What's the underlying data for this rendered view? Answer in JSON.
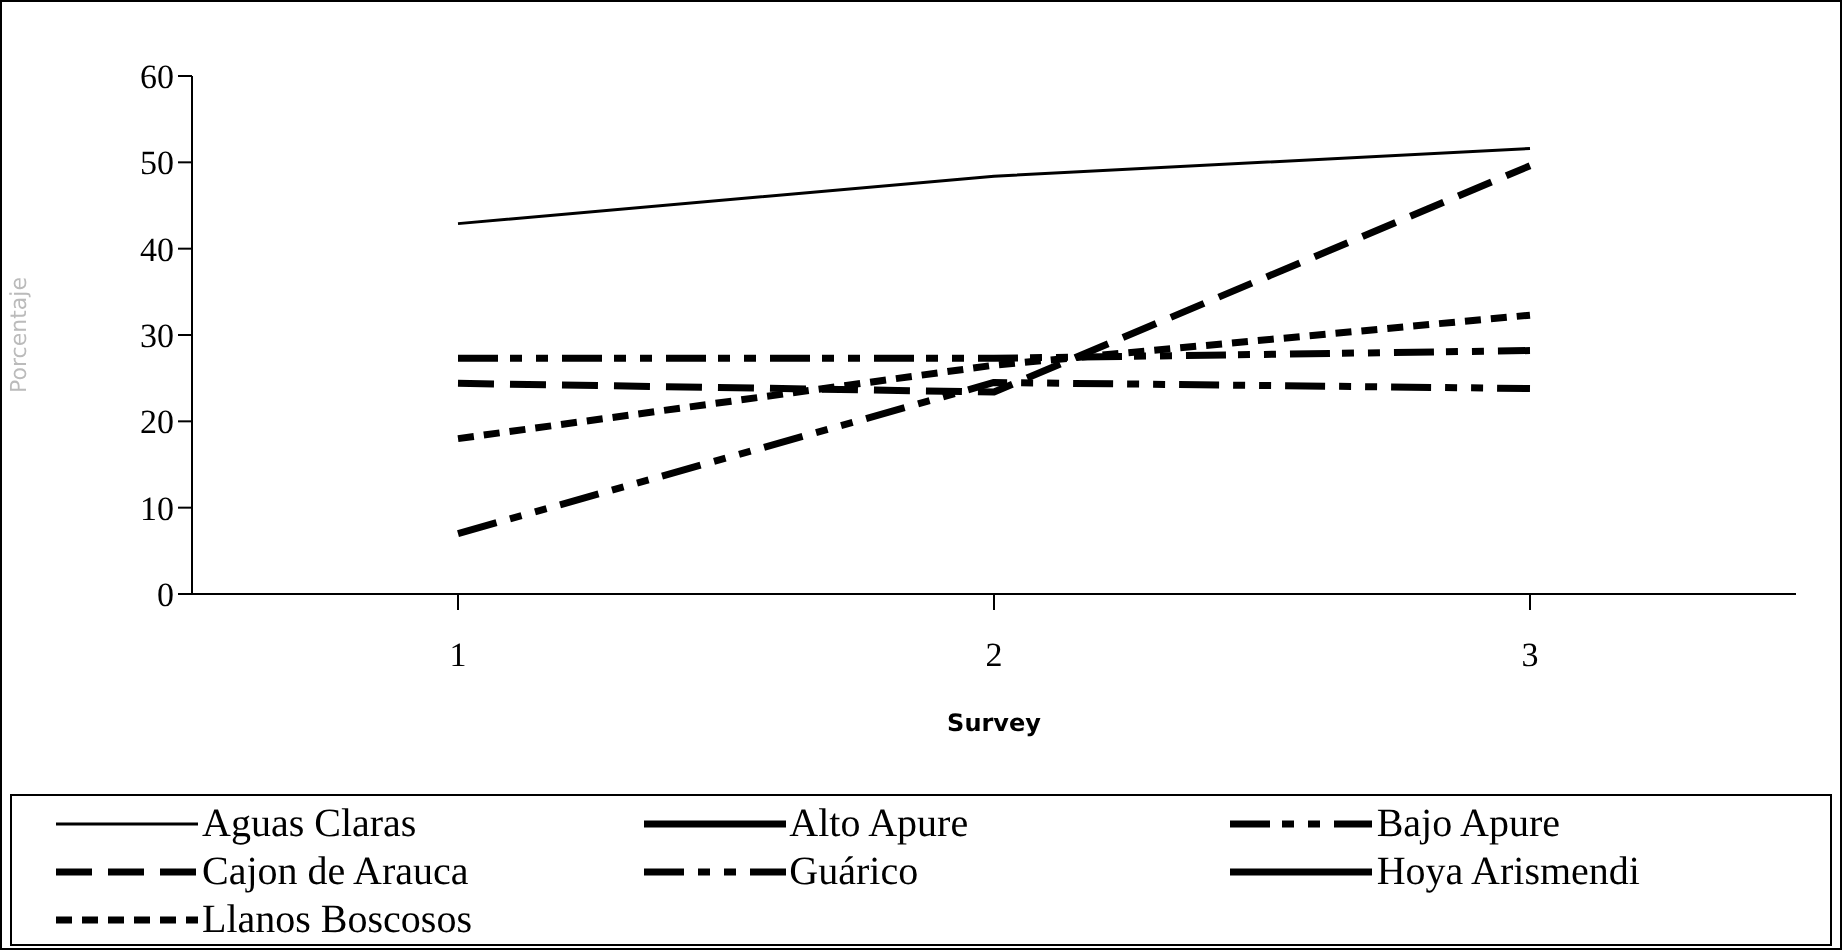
{
  "chart_data": {
    "type": "line",
    "xlabel": "Survey",
    "ylabel": "Porcentaje",
    "categories": [
      "1",
      "2",
      "3"
    ],
    "ylim": [
      0,
      60
    ],
    "yticks": [
      0,
      10,
      20,
      30,
      40,
      50,
      60
    ],
    "grid": false,
    "legend": "bottom",
    "marker": "none",
    "series": [
      {
        "name": "Aguas Claras",
        "color": "#000000",
        "line_style": "solid",
        "values": [
          42.9,
          48.4,
          51.6
        ]
      },
      {
        "name": "Alto Apure",
        "color": "#000000",
        "line_style": "solid",
        "values": [
          null,
          null,
          null
        ]
      },
      {
        "name": "Bajo Apure",
        "color": "#000000",
        "line_style": "dashed",
        "values": [
          27.3,
          27.3,
          28.2
        ]
      },
      {
        "name": "Cajon de Arauca",
        "color": "#000000",
        "line_style": "dashed",
        "values": [
          24.4,
          23.4,
          49.6
        ]
      },
      {
        "name": "Guárico",
        "color": "#000000",
        "line_style": "dashed",
        "values": [
          7.0,
          24.5,
          23.8
        ]
      },
      {
        "name": "Hoya Arismendi",
        "color": "#000000",
        "line_style": "solid",
        "values": [
          null,
          null,
          null
        ]
      },
      {
        "name": "Llanos Boscosos",
        "color": "#000000",
        "line_style": "dotted",
        "values": [
          18.0,
          26.5,
          32.3
        ]
      }
    ]
  }
}
